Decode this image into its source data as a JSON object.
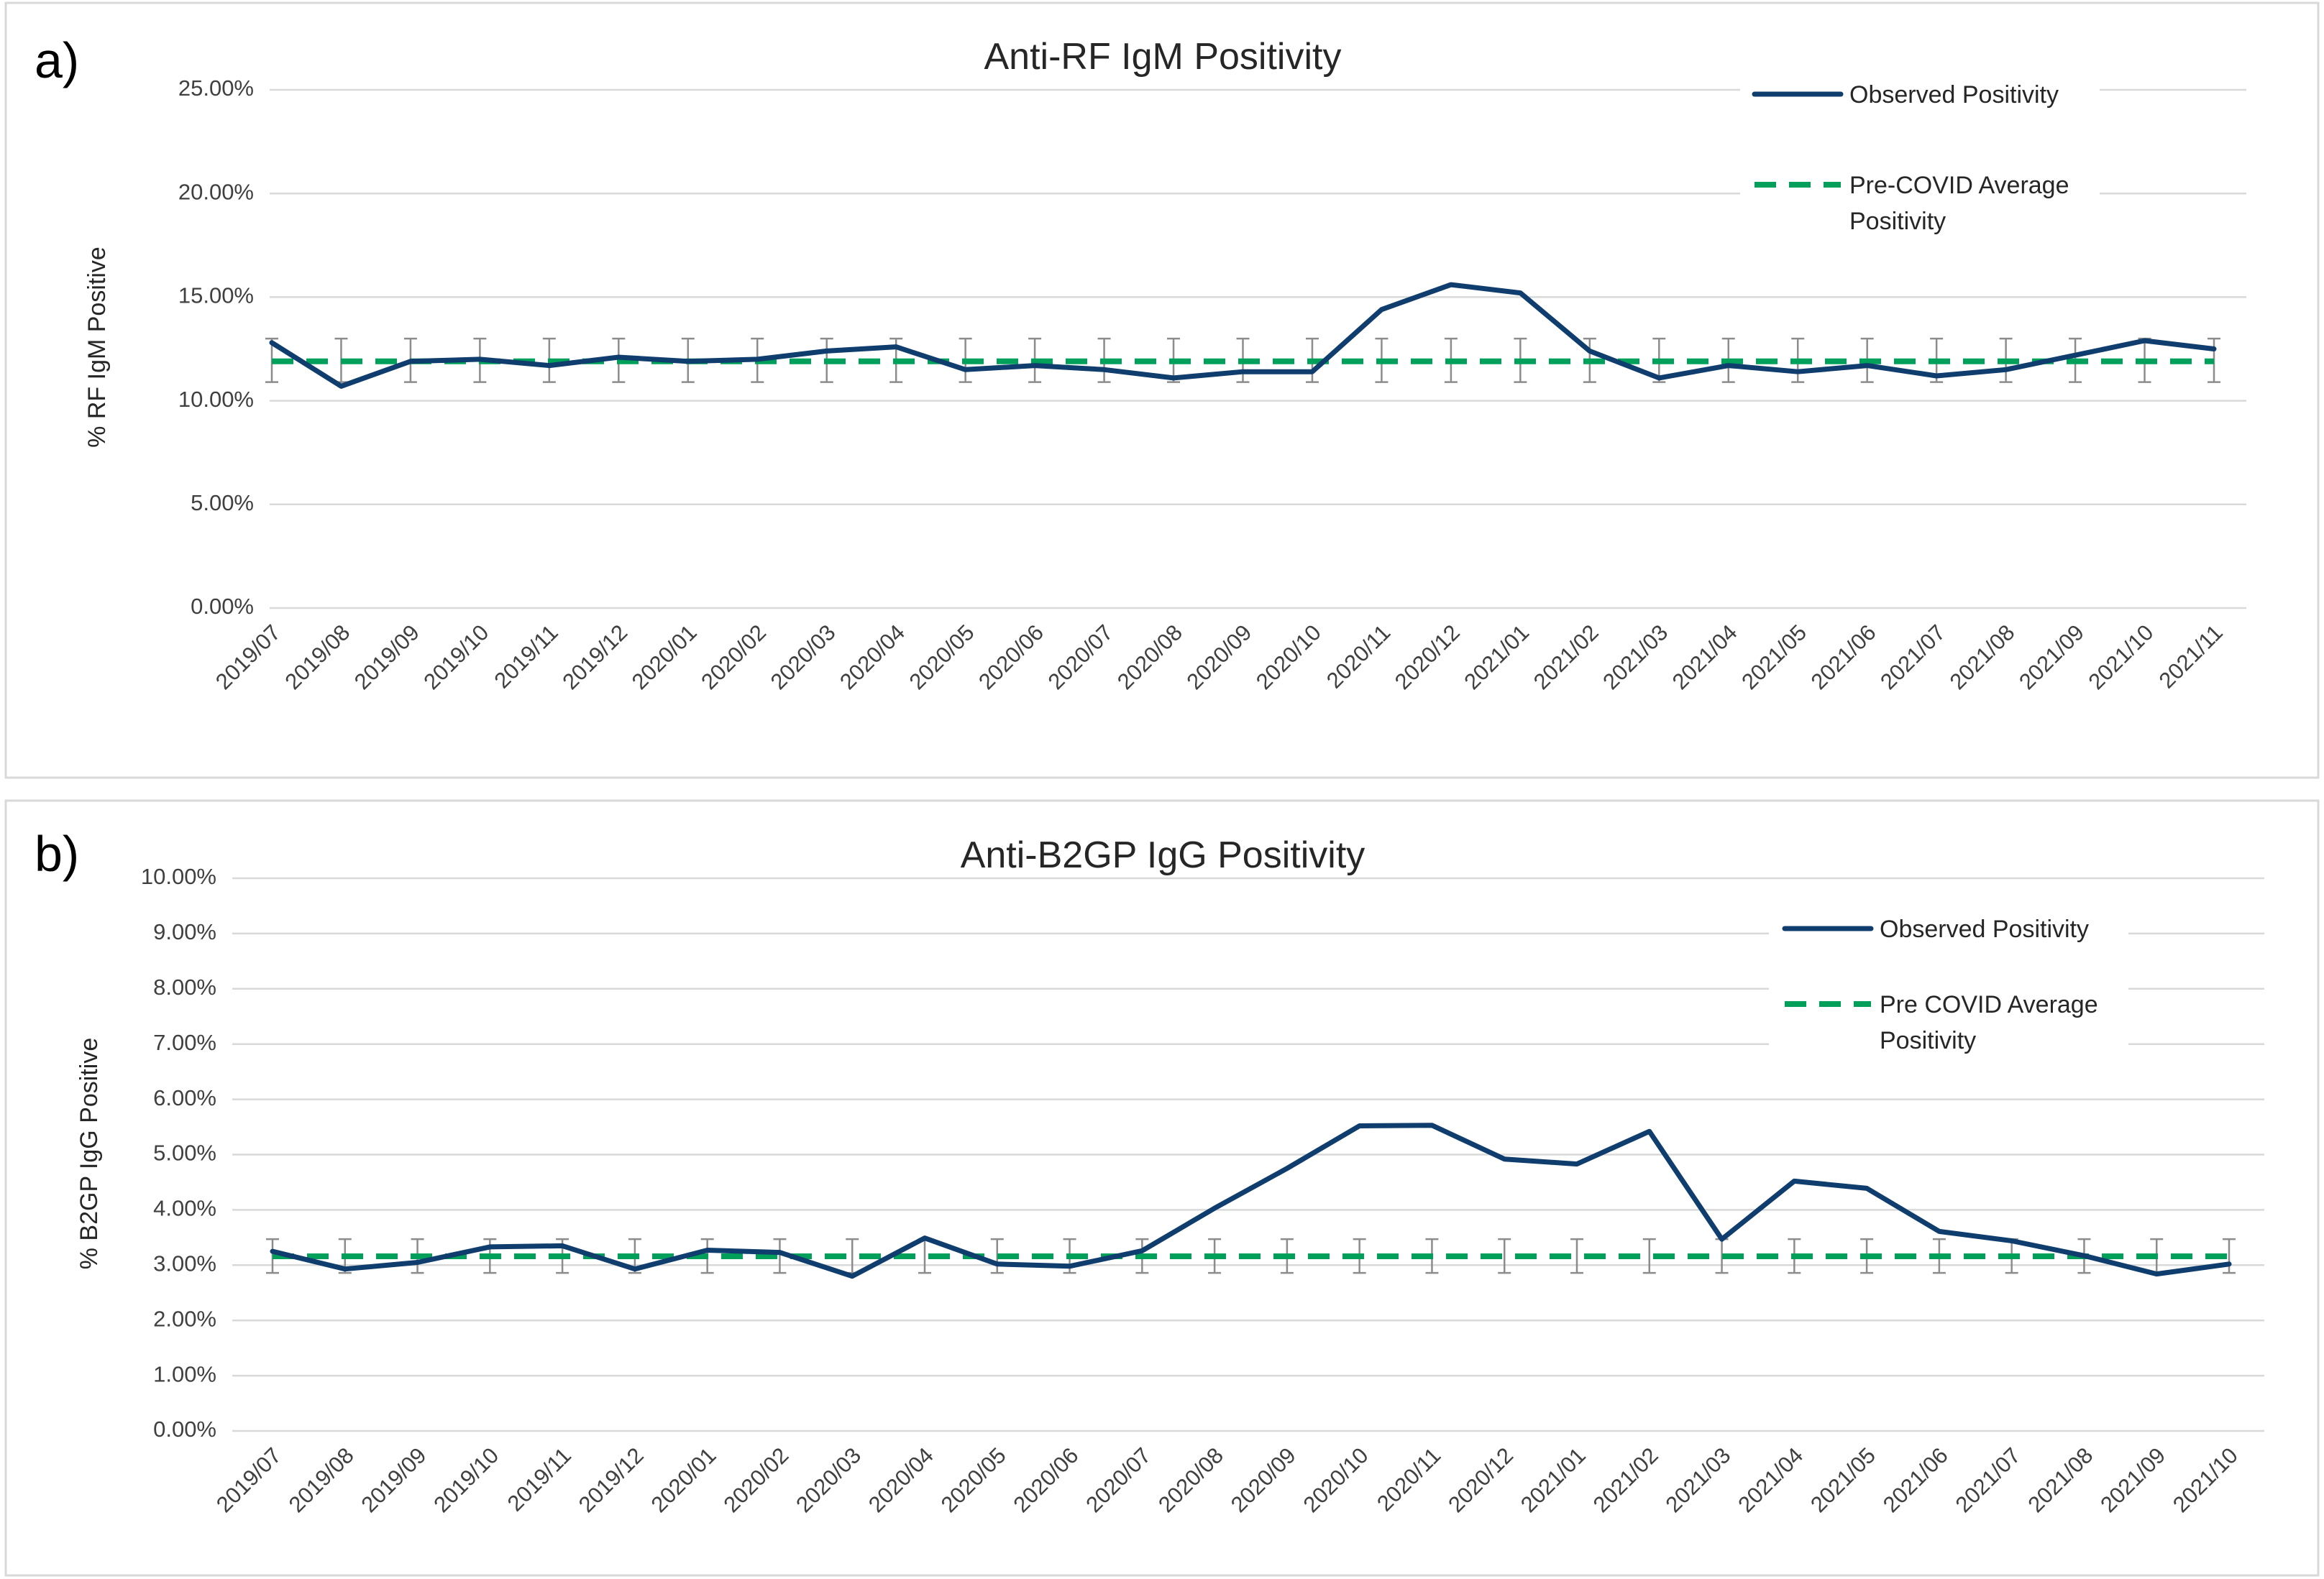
{
  "colors": {
    "observed": "#0f3d6e",
    "average": "#00a05a",
    "errorbar": "#8c8c8c",
    "grid": "#d9d9d9"
  },
  "chart_data": [
    {
      "panel_label": "a)",
      "type": "line",
      "title": "Anti-RF IgM Positivity",
      "xlabel": "",
      "ylabel": "% RF IgM Positive",
      "ylim": [
        0,
        0.25
      ],
      "yticks": [
        0,
        0.05,
        0.1,
        0.15,
        0.2,
        0.25
      ],
      "ytick_labels": [
        "0.00%",
        "5.00%",
        "10.00%",
        "15.00%",
        "20.00%",
        "25.00%"
      ],
      "grid": true,
      "legend_position": "top-right",
      "categories": [
        "2019/07",
        "2019/08",
        "2019/09",
        "2019/10",
        "2019/11",
        "2019/12",
        "2020/01",
        "2020/02",
        "2020/03",
        "2020/04",
        "2020/05",
        "2020/06",
        "2020/07",
        "2020/08",
        "2020/09",
        "2020/10",
        "2020/11",
        "2020/12",
        "2021/01",
        "2021/02",
        "2021/03",
        "2021/04",
        "2021/05",
        "2021/06",
        "2021/07",
        "2021/08",
        "2021/09",
        "2021/10",
        "2021/11"
      ],
      "series": [
        {
          "name": "Observed Positivity",
          "style": "solid",
          "values": [
            0.128,
            0.107,
            0.119,
            0.12,
            0.117,
            0.121,
            0.119,
            0.12,
            0.124,
            0.126,
            0.115,
            0.117,
            0.115,
            0.111,
            0.114,
            0.114,
            0.144,
            0.156,
            0.152,
            0.124,
            0.111,
            0.117,
            0.114,
            0.117,
            0.112,
            0.115,
            0.122,
            0.129,
            0.125
          ]
        },
        {
          "name": "Pre-COVID Average Positivity",
          "style": "dashed",
          "value": 0.119,
          "error_band": [
            0.109,
            0.13
          ]
        }
      ]
    },
    {
      "panel_label": "b)",
      "type": "line",
      "title": "Anti-B2GP IgG Positivity",
      "xlabel": "",
      "ylabel": "% B2GP IgG Positive",
      "ylim": [
        0,
        0.1
      ],
      "yticks": [
        0,
        0.01,
        0.02,
        0.03,
        0.04,
        0.05,
        0.06,
        0.07,
        0.08,
        0.09,
        0.1
      ],
      "ytick_labels": [
        "0.00%",
        "1.00%",
        "2.00%",
        "3.00%",
        "4.00%",
        "5.00%",
        "6.00%",
        "7.00%",
        "8.00%",
        "9.00%",
        "10.00%"
      ],
      "grid": true,
      "legend_position": "top-right",
      "categories": [
        "2019/07",
        "2019/08",
        "2019/09",
        "2019/10",
        "2019/11",
        "2019/12",
        "2020/01",
        "2020/02",
        "2020/03",
        "2020/04",
        "2020/05",
        "2020/06",
        "2020/07",
        "2020/08",
        "2020/09",
        "2020/10",
        "2020/11",
        "2020/12",
        "2021/01",
        "2021/02",
        "2021/03",
        "2021/04",
        "2021/05",
        "2021/06",
        "2021/07",
        "2021/08",
        "2021/09",
        "2021/10"
      ],
      "series": [
        {
          "name": "Observed Positivity",
          "style": "solid",
          "values": [
            0.0325,
            0.0293,
            0.0305,
            0.0333,
            0.0335,
            0.0293,
            0.0327,
            0.0323,
            0.028,
            0.0349,
            0.0302,
            0.0298,
            0.0326,
            0.0403,
            0.0475,
            0.0552,
            0.0553,
            0.0492,
            0.0483,
            0.0542,
            0.0347,
            0.0452,
            0.0439,
            0.0361,
            0.0344,
            0.0317,
            0.0284,
            0.0302
          ]
        },
        {
          "name": "Pre COVID Average Positivity",
          "style": "dashed",
          "value": 0.0316,
          "error_band": [
            0.0286,
            0.0347
          ]
        }
      ]
    }
  ]
}
